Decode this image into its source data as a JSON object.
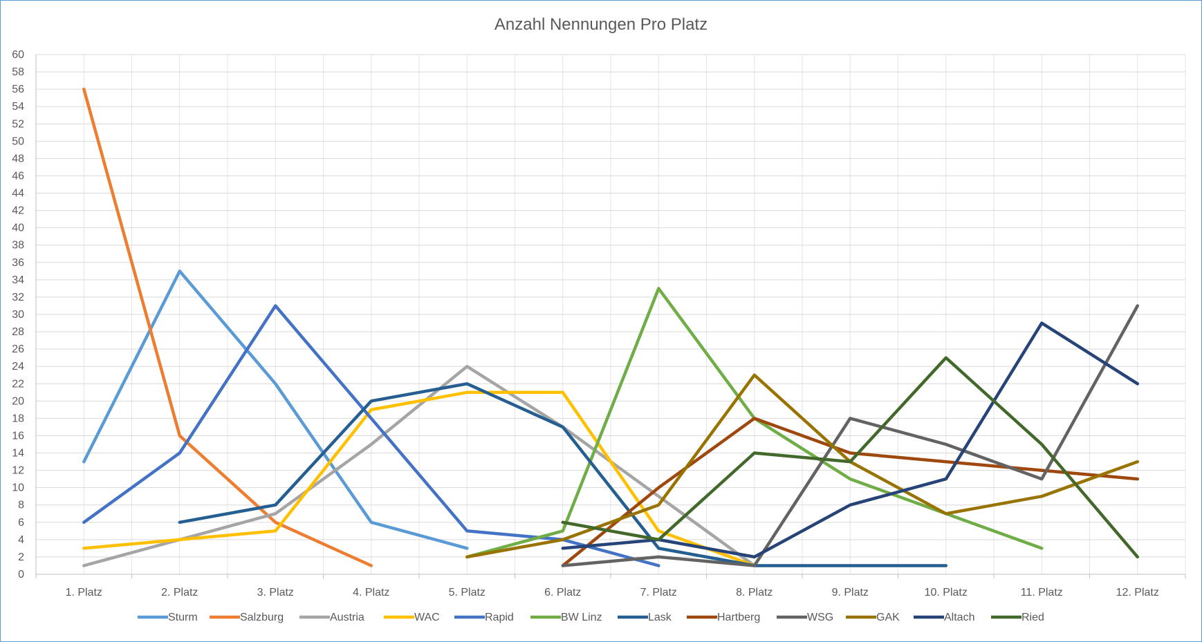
{
  "chart_data": {
    "type": "line",
    "title": "Anzahl Nennungen Pro Platz",
    "xlabel": "",
    "ylabel": "",
    "categories": [
      "1. Platz",
      "2. Platz",
      "3. Platz",
      "4. Platz",
      "5. Platz",
      "6. Platz",
      "7. Platz",
      "8. Platz",
      "9. Platz",
      "10. Platz",
      "11. Platz",
      "12. Platz"
    ],
    "ylim": [
      0,
      60
    ],
    "ytick_step": 2,
    "grid": true,
    "legend_position": "bottom",
    "series": [
      {
        "name": "Sturm",
        "color": "#5b9bd5",
        "values": [
          13,
          35,
          22,
          6,
          3,
          null,
          null,
          null,
          null,
          null,
          null,
          null
        ]
      },
      {
        "name": "Salzburg",
        "color": "#ed7d31",
        "values": [
          56,
          16,
          6,
          1,
          null,
          null,
          null,
          null,
          null,
          null,
          null,
          null
        ]
      },
      {
        "name": "Austria",
        "color": "#a5a5a5",
        "values": [
          1,
          4,
          7,
          15,
          24,
          17,
          9,
          1,
          null,
          null,
          null,
          null
        ]
      },
      {
        "name": "WAC",
        "color": "#ffc000",
        "values": [
          3,
          4,
          5,
          19,
          21,
          21,
          5,
          1,
          null,
          null,
          null,
          null
        ]
      },
      {
        "name": "Rapid",
        "color": "#4472c4",
        "values": [
          6,
          14,
          31,
          18,
          5,
          4,
          1,
          null,
          null,
          null,
          null,
          null
        ]
      },
      {
        "name": "BW Linz",
        "color": "#70ad47",
        "values": [
          null,
          null,
          null,
          null,
          2,
          5,
          33,
          18,
          11,
          7,
          3,
          null
        ]
      },
      {
        "name": "Lask",
        "color": "#255e91",
        "values": [
          null,
          6,
          8,
          20,
          22,
          17,
          3,
          1,
          1,
          1,
          null,
          null
        ]
      },
      {
        "name": "Hartberg",
        "color": "#9e480e",
        "values": [
          null,
          null,
          null,
          null,
          null,
          1,
          10,
          18,
          14,
          13,
          12,
          11
        ]
      },
      {
        "name": "WSG",
        "color": "#636363",
        "values": [
          null,
          null,
          null,
          null,
          null,
          1,
          2,
          1,
          18,
          15,
          11,
          31
        ]
      },
      {
        "name": "GAK",
        "color": "#997300",
        "values": [
          null,
          null,
          null,
          null,
          2,
          4,
          8,
          23,
          13,
          7,
          9,
          13
        ]
      },
      {
        "name": "Altach",
        "color": "#264478",
        "values": [
          null,
          null,
          null,
          null,
          null,
          3,
          4,
          2,
          8,
          11,
          29,
          22
        ]
      },
      {
        "name": "Ried",
        "color": "#43682b",
        "values": [
          null,
          null,
          null,
          null,
          null,
          6,
          4,
          14,
          13,
          25,
          15,
          2
        ]
      }
    ]
  }
}
